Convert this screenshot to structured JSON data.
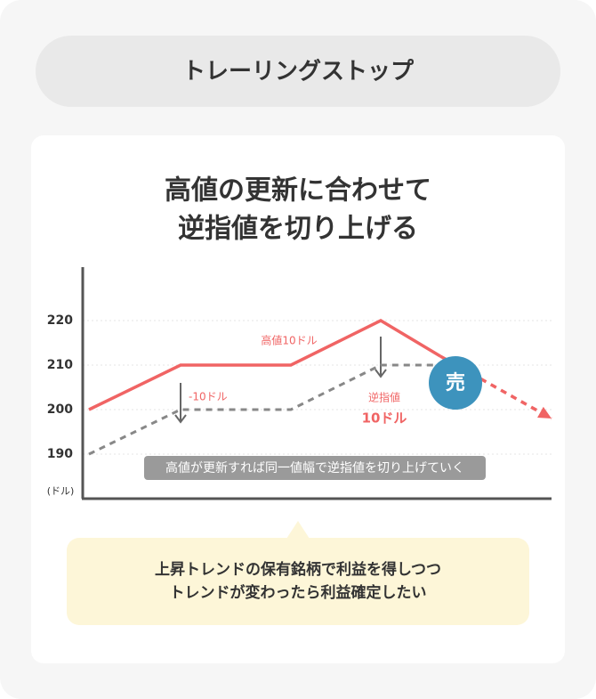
{
  "header": {
    "title": "トレーリングストップ"
  },
  "card": {
    "title_lines": [
      "高値の更新に合わせて",
      "逆指値を切り上げる"
    ]
  },
  "chart_data": {
    "type": "line",
    "categories": [
      null,
      null,
      null,
      null,
      null,
      null
    ],
    "series": [
      {
        "color": "#f06464",
        "style": "solid",
        "values": [
          200,
          210,
          210,
          220,
          212,
          null
        ]
      },
      {
        "color": "#f06464",
        "style": "dashed",
        "values": [
          null,
          null,
          null,
          null,
          212,
          198
        ]
      },
      {
        "color": "#888888",
        "style": "dashed",
        "values": [
          190,
          200,
          200,
          210,
          210,
          null
        ]
      }
    ],
    "ylim": [
      180,
      232
    ],
    "yticks": [
      190,
      200,
      210,
      220
    ],
    "grid": true,
    "unit": "(ドル)",
    "annotations": {
      "high": "高値10ドル",
      "minus": "-10ドル",
      "stop": "逆指値",
      "stop_amount": "10ドル",
      "sell": "売",
      "note": "高値が更新すれば同一値幅で逆指値を切り上げていく"
    }
  },
  "bubble": {
    "lines": [
      "上昇トレンドの保有銘柄で利益を得しつつ",
      "トレンドが変わったら利益確定したい"
    ]
  }
}
